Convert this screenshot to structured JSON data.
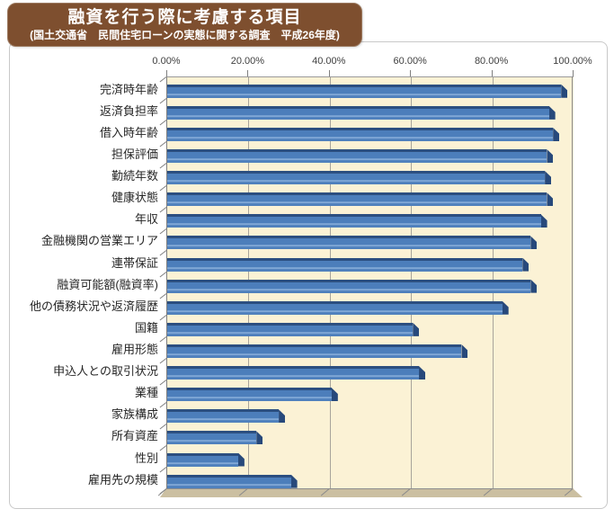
{
  "chart_data": {
    "type": "bar",
    "style": "3d-horizontal-bar",
    "orientation": "horizontal",
    "title": "融資を行う際に考慮する項目",
    "subtitle": "(国土交通省　民間住宅ローンの実態に関する調査　平成26年度)",
    "categories": [
      "完済時年齢",
      "返済負担率",
      "借入時年齢",
      "担保評価",
      "勤続年数",
      "健康状態",
      "年収",
      "金融機関の営業エリア",
      "連帯保証",
      "融資可能額(融資率)",
      "他の債務状況や返済履歴",
      "国籍",
      "雇用形態",
      "申込人との取引状況",
      "業種",
      "家族構成",
      "所有資産",
      "性別",
      "雇用先の規模"
    ],
    "values": [
      98.5,
      95.5,
      96.5,
      95,
      94.5,
      95,
      93.5,
      91,
      89,
      91,
      84,
      62,
      74,
      63.5,
      42,
      29,
      23.5,
      19,
      32
    ],
    "unit": "%",
    "x_tick_labels": [
      "0.00%",
      "20.00%",
      "40.00%",
      "60.00%",
      "80.00%",
      "100.00%"
    ],
    "xlim": [
      0,
      100
    ],
    "grid": "vertical-only",
    "legend": "none"
  },
  "colors": {
    "bar": "#4C7EBB",
    "bar_top_edge": "#2C4F80",
    "bar_end_cap": "#27497B",
    "plot_background": "#FBF2D5",
    "floor": "#CBBFA1",
    "gridline": "#A8A49B",
    "axis_line": "#7F7F7F",
    "title_background": "#7E4F2F",
    "title_text": "#FFFFFF",
    "frame_border": "#C9C9C9",
    "tick_label_text": "#3F3F3F",
    "category_label_text": "#262626"
  }
}
